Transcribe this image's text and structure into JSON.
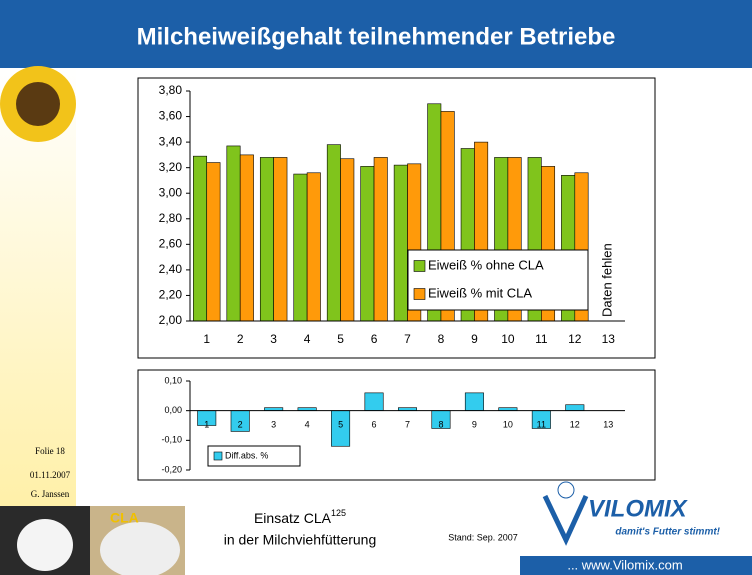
{
  "slide": {
    "title": "Milcheiweißgehalt teilnehmender Betriebe",
    "folio": "Folie 18",
    "date": "01.11.2007",
    "author": "G. Janssen",
    "subject": "Einsatz CLA",
    "subject_sup": "125",
    "subject_line2": "in der Milchviehfütterung",
    "status": "Stand: Sep. 2007",
    "logo": "VILOMIX",
    "slogan": "damit's Futter stimmt!",
    "website": "... www.Vilomix.com",
    "badge": "CLA"
  },
  "chart_data": [
    {
      "type": "bar",
      "annotation": "Daten fehlen",
      "categories": [
        "1",
        "2",
        "3",
        "4",
        "5",
        "6",
        "7",
        "8",
        "9",
        "10",
        "11",
        "12",
        "13"
      ],
      "series": [
        {
          "name": "Eiweiß % ohne CLA",
          "color": "#80c41c",
          "values": [
            3.29,
            3.37,
            3.28,
            3.15,
            3.38,
            3.21,
            3.22,
            3.7,
            3.35,
            3.28,
            3.28,
            3.14,
            null
          ]
        },
        {
          "name": "Eiweiß % mit CLA",
          "color": "#ff9a0a",
          "values": [
            3.24,
            3.3,
            3.28,
            3.16,
            3.27,
            3.28,
            3.23,
            3.64,
            3.4,
            3.28,
            3.21,
            3.16,
            null
          ]
        }
      ],
      "ylim": [
        2.0,
        3.8
      ],
      "yticks": [
        {
          "value": 2.0,
          "label": "2,00"
        },
        {
          "value": 2.2,
          "label": "2,20"
        },
        {
          "value": 2.4,
          "label": "2,40"
        },
        {
          "value": 2.6,
          "label": "2,60"
        },
        {
          "value": 2.8,
          "label": "2,80"
        },
        {
          "value": 3.0,
          "label": "3,00"
        },
        {
          "value": 3.2,
          "label": "3,20"
        },
        {
          "value": 3.4,
          "label": "3,40"
        },
        {
          "value": 3.6,
          "label": "3,60"
        },
        {
          "value": 3.8,
          "label": "3,80"
        }
      ],
      "grid": false,
      "legend": "lower-right"
    },
    {
      "type": "bar",
      "categories": [
        "1",
        "2",
        "3",
        "4",
        "5",
        "6",
        "7",
        "8",
        "9",
        "10",
        "11",
        "12",
        "13"
      ],
      "series": [
        {
          "name": "Diff.abs. %",
          "color": "#33ccee",
          "values": [
            -0.05,
            -0.07,
            0.01,
            0.01,
            -0.12,
            0.06,
            0.01,
            -0.06,
            0.06,
            0.01,
            -0.06,
            0.02,
            null
          ]
        }
      ],
      "ylim": [
        -0.2,
        0.1
      ],
      "yticks": [
        {
          "value": -0.2,
          "label": "-0,20"
        },
        {
          "value": -0.1,
          "label": "-0,10"
        },
        {
          "value": 0,
          "label": "0,00"
        },
        {
          "value": 0.1,
          "label": "0,10"
        }
      ],
      "grid": false,
      "legend": "lower-left"
    }
  ]
}
